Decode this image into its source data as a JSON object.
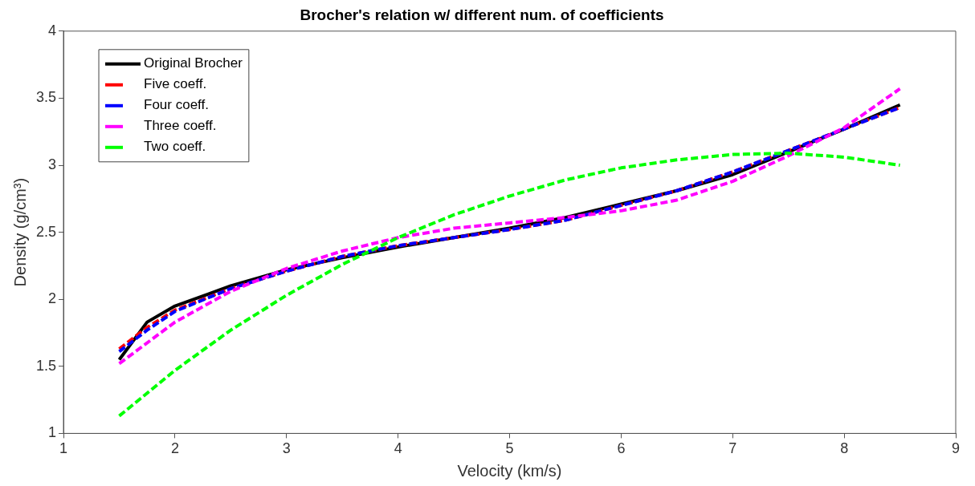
{
  "chart_data": {
    "type": "line",
    "title": "Brocher's relation w/ different num. of coefficients",
    "xlabel": "Velocity (km/s)",
    "ylabel": "Density (g/cm³)",
    "xlim": [
      1,
      9
    ],
    "xticks": [
      1,
      2,
      3,
      4,
      5,
      6,
      7,
      8,
      9
    ],
    "ylim": [
      1,
      4
    ],
    "yticks": [
      1,
      1.5,
      2,
      2.5,
      3,
      3.5,
      4
    ],
    "grid": false,
    "legend": "top left",
    "marker": "none",
    "series": [
      {
        "name": "Original Brocher",
        "color": "#000000",
        "line_style": "solid",
        "x": [
          1.5,
          1.75,
          2,
          2.5,
          3,
          3.5,
          4,
          4.5,
          5,
          5.5,
          6,
          6.5,
          7,
          7.5,
          8,
          8.5
        ],
        "values": [
          1.55,
          1.83,
          1.95,
          2.1,
          2.22,
          2.31,
          2.39,
          2.46,
          2.53,
          2.61,
          2.71,
          2.81,
          2.93,
          3.1,
          3.27,
          3.45
        ]
      },
      {
        "name": "Five coeff.",
        "color": "#ff0000",
        "line_style": "dashed",
        "x": [
          1.5,
          1.75,
          2,
          2.5,
          3,
          3.5,
          4,
          4.5,
          5,
          5.5,
          6,
          6.5,
          7,
          7.5,
          8,
          8.5
        ],
        "values": [
          1.63,
          1.79,
          1.92,
          2.08,
          2.21,
          2.32,
          2.4,
          2.46,
          2.52,
          2.59,
          2.7,
          2.81,
          2.95,
          3.11,
          3.27,
          3.43
        ]
      },
      {
        "name": "Four coeff.",
        "color": "#0000ff",
        "line_style": "dashed",
        "x": [
          1.5,
          1.75,
          2,
          2.5,
          3,
          3.5,
          4,
          4.5,
          5,
          5.5,
          6,
          6.5,
          7,
          7.5,
          8,
          8.5
        ],
        "values": [
          1.61,
          1.77,
          1.91,
          2.08,
          2.21,
          2.32,
          2.4,
          2.46,
          2.52,
          2.59,
          2.7,
          2.81,
          2.95,
          3.11,
          3.27,
          3.43
        ]
      },
      {
        "name": "Three coeff.",
        "color": "#ff00ff",
        "line_style": "dashed",
        "x": [
          1.5,
          2,
          2.5,
          3,
          3.5,
          4,
          4.5,
          5,
          5.5,
          6,
          6.5,
          7,
          7.5,
          8,
          8.5
        ],
        "values": [
          1.52,
          1.83,
          2.06,
          2.23,
          2.36,
          2.46,
          2.53,
          2.57,
          2.61,
          2.66,
          2.74,
          2.88,
          3.07,
          3.28,
          3.57
        ]
      },
      {
        "name": "Two coeff.",
        "color": "#00ff00",
        "line_style": "dashed",
        "x": [
          1.5,
          2,
          2.5,
          3,
          3.5,
          4,
          4.5,
          5,
          5.5,
          6,
          6.5,
          7,
          7.5,
          8,
          8.5
        ],
        "values": [
          1.13,
          1.47,
          1.77,
          2.03,
          2.26,
          2.46,
          2.63,
          2.77,
          2.89,
          2.98,
          3.04,
          3.08,
          3.09,
          3.06,
          3.0
        ]
      }
    ]
  }
}
